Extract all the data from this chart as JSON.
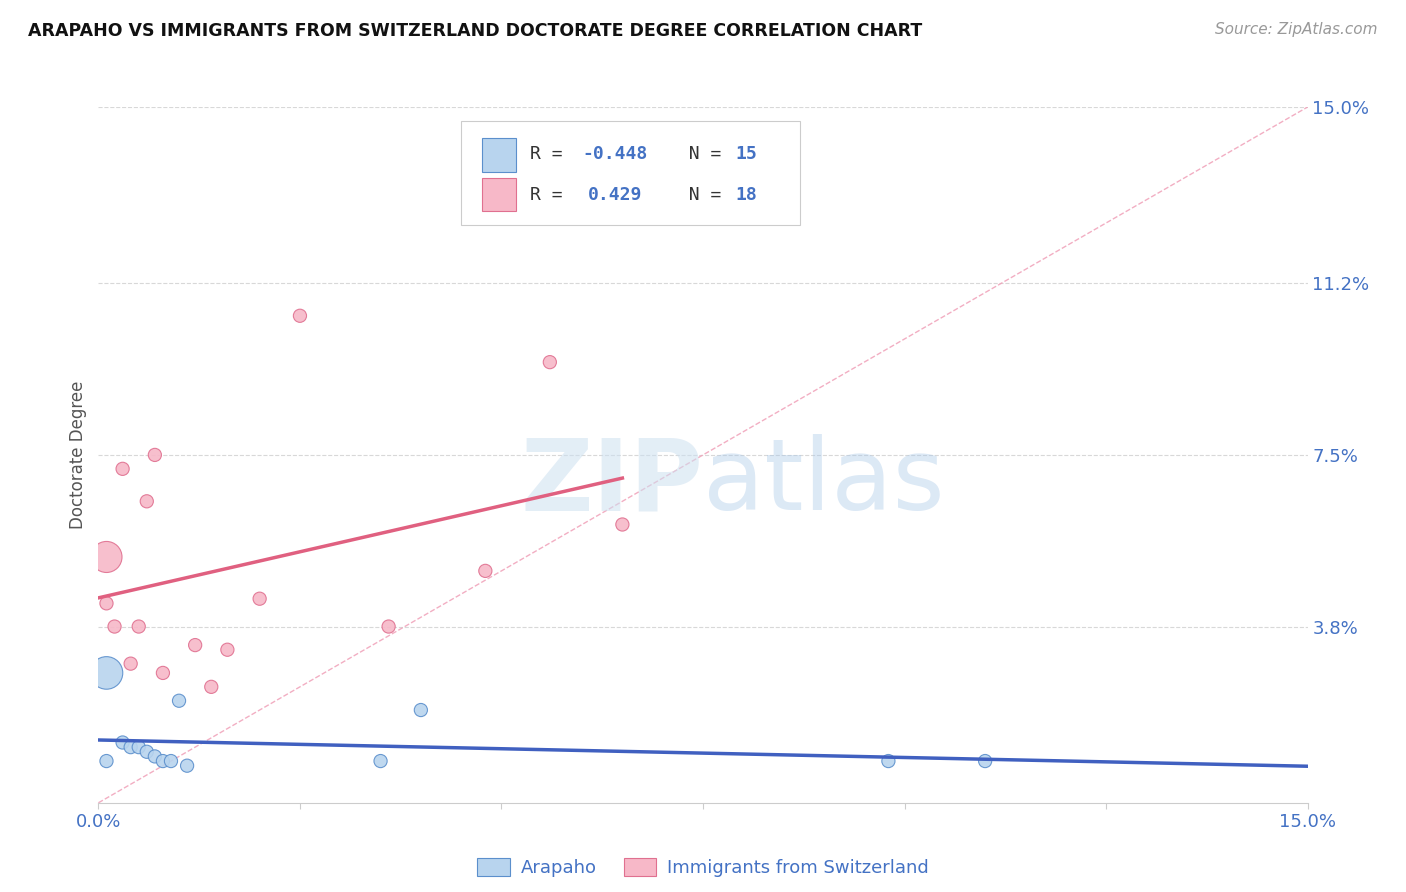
{
  "title": "ARAPAHO VS IMMIGRANTS FROM SWITZERLAND DOCTORATE DEGREE CORRELATION CHART",
  "source": "Source: ZipAtlas.com",
  "ylabel": "Doctorate Degree",
  "x_min": 0.0,
  "x_max": 0.15,
  "y_min": 0.0,
  "y_max": 0.15,
  "y_ticks_right": [
    0.0,
    0.038,
    0.075,
    0.112,
    0.15
  ],
  "y_tick_labels_right": [
    "",
    "3.8%",
    "7.5%",
    "11.2%",
    "15.0%"
  ],
  "r_arapaho": -0.448,
  "n_arapaho": 15,
  "r_swiss": 0.429,
  "n_swiss": 18,
  "color_arapaho_fill": "#b8d4ee",
  "color_swiss_fill": "#f7b8c8",
  "color_arapaho_edge": "#5b8fcc",
  "color_swiss_edge": "#e07090",
  "color_arapaho_line": "#4060c0",
  "color_swiss_line": "#e06080",
  "diagonal_line_color": "#f0a0b8",
  "grid_color": "#d8d8d8",
  "arapaho_x": [
    0.001,
    0.003,
    0.004,
    0.005,
    0.006,
    0.007,
    0.008,
    0.009,
    0.01,
    0.011,
    0.035,
    0.04,
    0.098,
    0.11,
    0.001
  ],
  "arapaho_y": [
    0.028,
    0.013,
    0.012,
    0.012,
    0.011,
    0.01,
    0.009,
    0.009,
    0.022,
    0.008,
    0.009,
    0.02,
    0.009,
    0.009,
    0.009
  ],
  "arapaho_sizes": [
    550,
    90,
    90,
    90,
    90,
    90,
    90,
    90,
    90,
    90,
    90,
    90,
    90,
    90,
    90
  ],
  "swiss_x": [
    0.001,
    0.001,
    0.002,
    0.003,
    0.004,
    0.005,
    0.006,
    0.007,
    0.008,
    0.012,
    0.014,
    0.016,
    0.02,
    0.025,
    0.036,
    0.048,
    0.056,
    0.065
  ],
  "swiss_y": [
    0.053,
    0.043,
    0.038,
    0.072,
    0.03,
    0.038,
    0.065,
    0.075,
    0.028,
    0.034,
    0.025,
    0.033,
    0.044,
    0.105,
    0.038,
    0.05,
    0.095,
    0.06
  ],
  "swiss_sizes": [
    500,
    90,
    90,
    90,
    90,
    90,
    90,
    90,
    90,
    90,
    90,
    90,
    90,
    90,
    90,
    90,
    90,
    90
  ],
  "arapaho_line_x0": 0.0,
  "arapaho_line_x1": 0.15,
  "swiss_line_x0": 0.0,
  "swiss_line_x1": 0.065
}
